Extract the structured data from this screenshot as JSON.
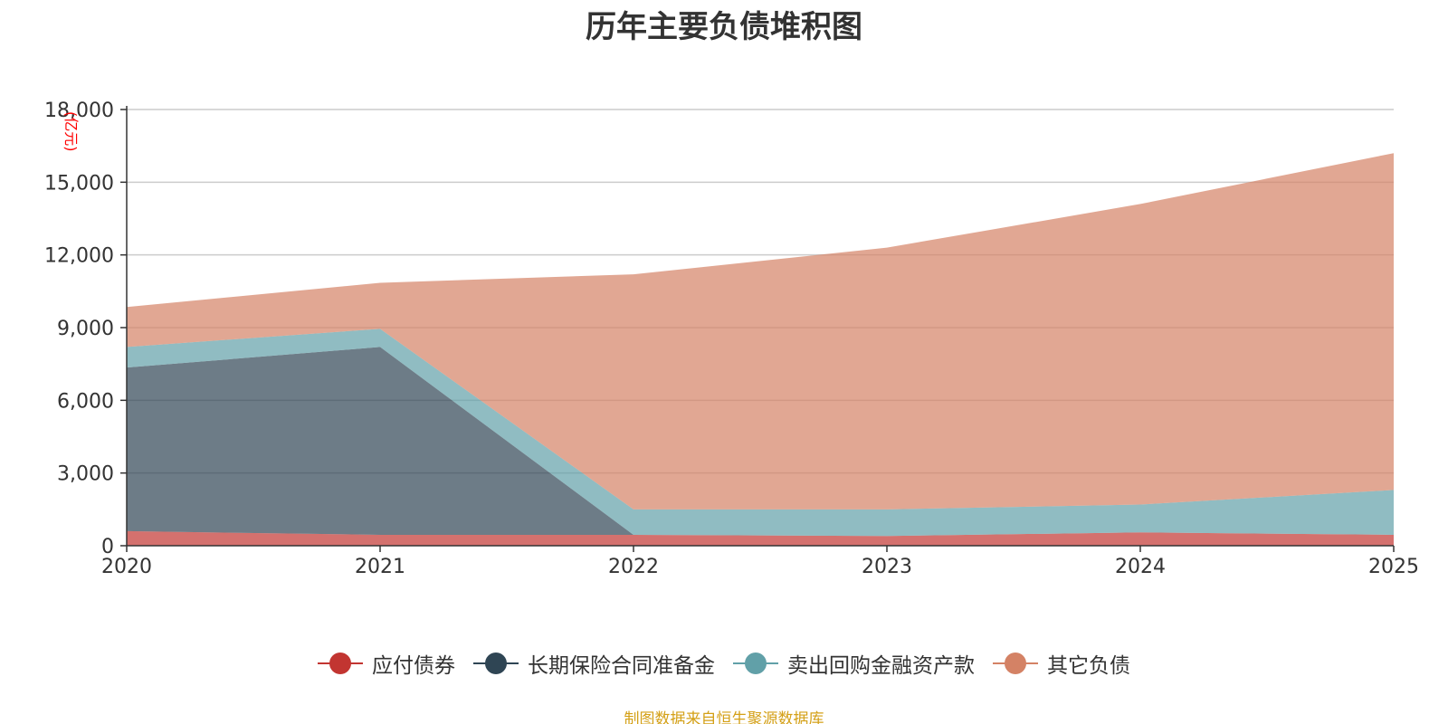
{
  "chart_data": {
    "type": "area",
    "stacked": true,
    "title": "历年主要负债堆积图",
    "unit": "(亿元)",
    "x": [
      "2020",
      "2021",
      "2022",
      "2023",
      "2024",
      "2025"
    ],
    "y_ticks": [
      "0",
      "3,000",
      "6,000",
      "9,000",
      "12,000",
      "15,000",
      "18,000"
    ],
    "ylim": [
      0,
      18000
    ],
    "grid": true,
    "legend_position": "bottom",
    "series": [
      {
        "name": "应付债券",
        "color": "#c23531",
        "values": [
          600,
          450,
          450,
          400,
          550,
          450
        ]
      },
      {
        "name": "长期保险合同准备金",
        "color": "#2f4554",
        "values": [
          6750,
          7750,
          0,
          0,
          0,
          0
        ]
      },
      {
        "name": "卖出回购金融资产款",
        "color": "#61a0a8",
        "values": [
          850,
          750,
          1050,
          1100,
          1150,
          1850
        ]
      },
      {
        "name": "其它负债",
        "color": "#d48265",
        "values": [
          1650,
          1900,
          9700,
          10800,
          12400,
          13900
        ]
      }
    ],
    "source": "制图数据来自恒生聚源数据库"
  }
}
